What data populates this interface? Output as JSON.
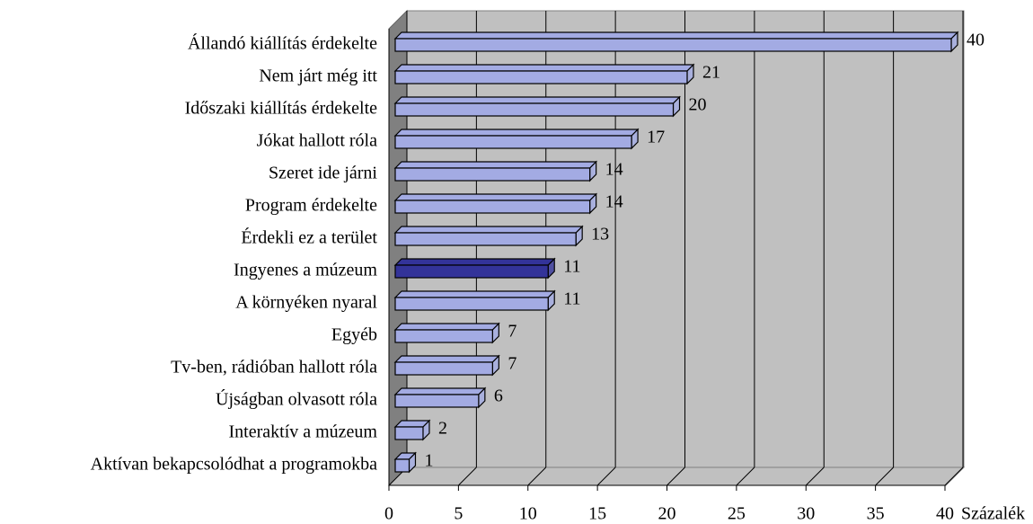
{
  "chart_data": {
    "type": "bar3d_horizontal",
    "x_label": "Százalék",
    "categories": [
      "Állandó kiállítás érdekelte",
      "Nem járt még itt",
      "Időszaki kiállítás érdekelte",
      "Jókat hallott róla",
      "Szeret ide járni",
      "Program érdekelte",
      "Érdekli ez a terület",
      "Ingyenes a múzeum",
      "A környéken nyaral",
      "Egyéb",
      "Tv-ben, rádióban hallott róla",
      "Újságban olvasott róla",
      "Interaktív a múzeum",
      "Aktívan bekapcsolódhat a programokba"
    ],
    "values": [
      40,
      21,
      20,
      17,
      14,
      14,
      13,
      11,
      11,
      7,
      7,
      6,
      2,
      1
    ],
    "colors": [
      "#a3abe3",
      "#a3abe3",
      "#a3abe3",
      "#a3abe3",
      "#a3abe3",
      "#a3abe3",
      "#a3abe3",
      "#333399",
      "#a3abe3",
      "#a3abe3",
      "#a3abe3",
      "#a3abe3",
      "#a3abe3",
      "#a3abe3"
    ],
    "xlim": [
      0,
      40
    ],
    "xticks": [
      0,
      5,
      10,
      15,
      20,
      25,
      30,
      35,
      40
    ],
    "grid": true
  }
}
